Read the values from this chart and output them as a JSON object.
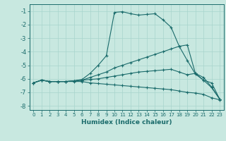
{
  "title": "",
  "xlabel": "Humidex (Indice chaleur)",
  "ylabel": "",
  "xlim": [
    -0.5,
    23.5
  ],
  "ylim": [
    -8.3,
    -0.5
  ],
  "xticks": [
    0,
    1,
    2,
    3,
    4,
    5,
    6,
    7,
    8,
    9,
    10,
    11,
    12,
    13,
    14,
    15,
    16,
    17,
    18,
    19,
    20,
    21,
    22,
    23
  ],
  "yticks": [
    -8,
    -7,
    -6,
    -5,
    -4,
    -3,
    -2,
    -1
  ],
  "bg_color": "#c8e8e0",
  "line_color": "#1a6b6b",
  "grid_color": "#a8d4cc",
  "lines": [
    {
      "x": [
        0,
        1,
        2,
        3,
        4,
        5,
        6,
        7,
        8,
        9,
        10,
        11,
        12,
        13,
        14,
        15,
        16,
        17,
        18,
        19,
        20,
        21,
        22,
        23
      ],
      "y": [
        -6.3,
        -6.1,
        -6.2,
        -6.2,
        -6.2,
        -6.15,
        -6.05,
        -5.6,
        -5.0,
        -4.3,
        -1.1,
        -1.05,
        -1.2,
        -1.3,
        -1.25,
        -1.2,
        -1.65,
        -2.2,
        -3.6,
        -4.65,
        -5.65,
        -6.1,
        -6.3,
        -7.5
      ]
    },
    {
      "x": [
        0,
        1,
        2,
        3,
        4,
        5,
        6,
        7,
        8,
        9,
        10,
        11,
        12,
        13,
        14,
        15,
        16,
        17,
        18,
        19,
        20,
        21,
        22,
        23
      ],
      "y": [
        -6.3,
        -6.1,
        -6.2,
        -6.2,
        -6.2,
        -6.15,
        -6.1,
        -5.9,
        -5.7,
        -5.5,
        -5.2,
        -5.0,
        -4.8,
        -4.6,
        -4.4,
        -4.2,
        -4.0,
        -3.8,
        -3.6,
        -3.5,
        -5.6,
        -5.9,
        -6.6,
        -7.5
      ]
    },
    {
      "x": [
        0,
        1,
        2,
        3,
        4,
        5,
        6,
        7,
        8,
        9,
        10,
        11,
        12,
        13,
        14,
        15,
        16,
        17,
        18,
        19,
        20,
        21,
        22,
        23
      ],
      "y": [
        -6.3,
        -6.1,
        -6.2,
        -6.2,
        -6.2,
        -6.15,
        -6.1,
        -6.05,
        -6.0,
        -5.9,
        -5.8,
        -5.7,
        -5.6,
        -5.5,
        -5.45,
        -5.4,
        -5.35,
        -5.3,
        -5.5,
        -5.7,
        -5.6,
        -6.1,
        -6.65,
        -7.5
      ]
    },
    {
      "x": [
        0,
        1,
        2,
        3,
        4,
        5,
        6,
        7,
        8,
        9,
        10,
        11,
        12,
        13,
        14,
        15,
        16,
        17,
        18,
        19,
        20,
        21,
        22,
        23
      ],
      "y": [
        -6.3,
        -6.1,
        -6.2,
        -6.2,
        -6.2,
        -6.2,
        -6.2,
        -6.3,
        -6.35,
        -6.4,
        -6.45,
        -6.5,
        -6.55,
        -6.6,
        -6.65,
        -6.7,
        -6.75,
        -6.8,
        -6.9,
        -7.0,
        -7.05,
        -7.15,
        -7.4,
        -7.55
      ]
    }
  ]
}
